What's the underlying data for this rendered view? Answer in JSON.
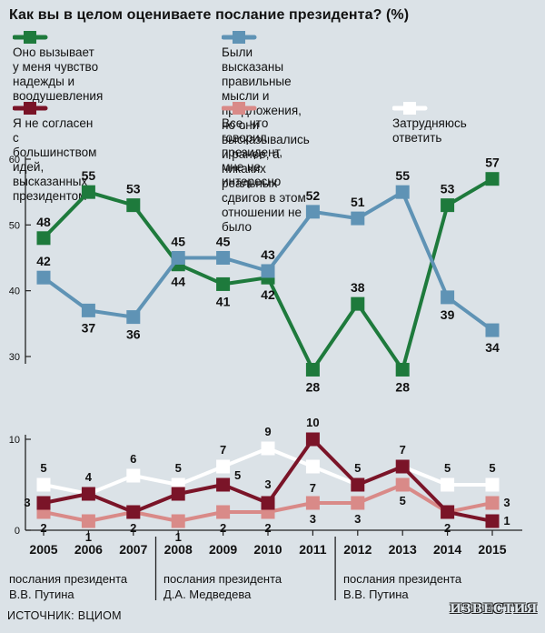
{
  "header": {
    "title": "Как вы в целом оцениваете послание президента? (%)"
  },
  "legend": [
    {
      "key": "hope",
      "color": "#1e7a3c",
      "lines": [
        "Оно вызывает у меня чувство",
        "надежды и воодушевления"
      ]
    },
    {
      "key": "correct",
      "color": "#5f93b5",
      "lines": [
        "Были высказаны правильные мысли и предложения,",
        "но они высказывались и ранее, а никаких реальных",
        "сдвигов в этом отношении не было"
      ]
    },
    {
      "key": "disagree",
      "color": "#7a1428",
      "lines": [
        "Я не согласен с большинством",
        "идей, высказанных президентом"
      ]
    },
    {
      "key": "notinterested",
      "color": "#d98a88",
      "lines": [
        "Все, что говорил президент,",
        "мне не интересно"
      ]
    },
    {
      "key": "hard",
      "color": "#ffffff",
      "lines": [
        "Затрудняюсь ответить"
      ]
    }
  ],
  "chart_data": [
    {
      "type": "line",
      "x": [
        "2005",
        "2006",
        "2007",
        "2008",
        "2009",
        "2010",
        "2011",
        "2012",
        "2013",
        "2014",
        "2015"
      ],
      "ylim": [
        25,
        60
      ],
      "yticks": [
        30,
        40,
        50,
        60
      ],
      "series": [
        {
          "name": "Оно вызывает у меня чувство надежды и воодушевления",
          "color": "#1e7a3c",
          "values": [
            48,
            55,
            53,
            44,
            41,
            42,
            28,
            38,
            28,
            53,
            57
          ]
        },
        {
          "name": "Были высказаны правильные мысли и предложения, но они высказывались и ранее, а никаких реальных сдвигов в этом отношении не было",
          "color": "#5f93b5",
          "values": [
            42,
            37,
            36,
            45,
            45,
            43,
            52,
            51,
            55,
            39,
            34
          ]
        }
      ]
    },
    {
      "type": "line",
      "x": [
        "2005",
        "2006",
        "2007",
        "2008",
        "2009",
        "2010",
        "2011",
        "2012",
        "2013",
        "2014",
        "2015"
      ],
      "ylim": [
        0,
        12
      ],
      "yticks": [
        0,
        10
      ],
      "series": [
        {
          "name": "Затрудняюсь ответить",
          "color": "#ffffff",
          "values": [
            5,
            4,
            6,
            5,
            7,
            9,
            7,
            5,
            7,
            5,
            5
          ],
          "labels": [
            "5",
            "4",
            "6",
            "5",
            "7",
            "9",
            "7",
            "",
            "",
            "5",
            "5"
          ]
        },
        {
          "name": "Все, что говорил президент, мне не интересно",
          "color": "#d98a88",
          "values": [
            2,
            1,
            2,
            1,
            2,
            2,
            3,
            3,
            5,
            2,
            3
          ],
          "labels": [
            "2",
            "1",
            "2",
            "1",
            "2",
            "2",
            "3",
            "3",
            "5",
            "2",
            "3"
          ]
        },
        {
          "name": "Я не согласен с большинством идей, высказанных президентом",
          "color": "#7a1428",
          "values": [
            3,
            4,
            2,
            4,
            5,
            3,
            10,
            5,
            7,
            2,
            1
          ],
          "labels": [
            "3",
            "",
            "",
            "",
            "5",
            "3",
            "10",
            "5",
            "7",
            "",
            "1"
          ]
        }
      ]
    }
  ],
  "presidency_labels": [
    {
      "lines": [
        "послания президента",
        "В.В. Путина"
      ]
    },
    {
      "lines": [
        "послания президента",
        "Д.А. Медведева"
      ]
    },
    {
      "lines": [
        "послания президента",
        "В.В. Путина"
      ]
    }
  ],
  "footer": {
    "source": "ИСТОЧНИК: ВЦИОМ",
    "logo": "ИЗВЕСТИЯ"
  }
}
